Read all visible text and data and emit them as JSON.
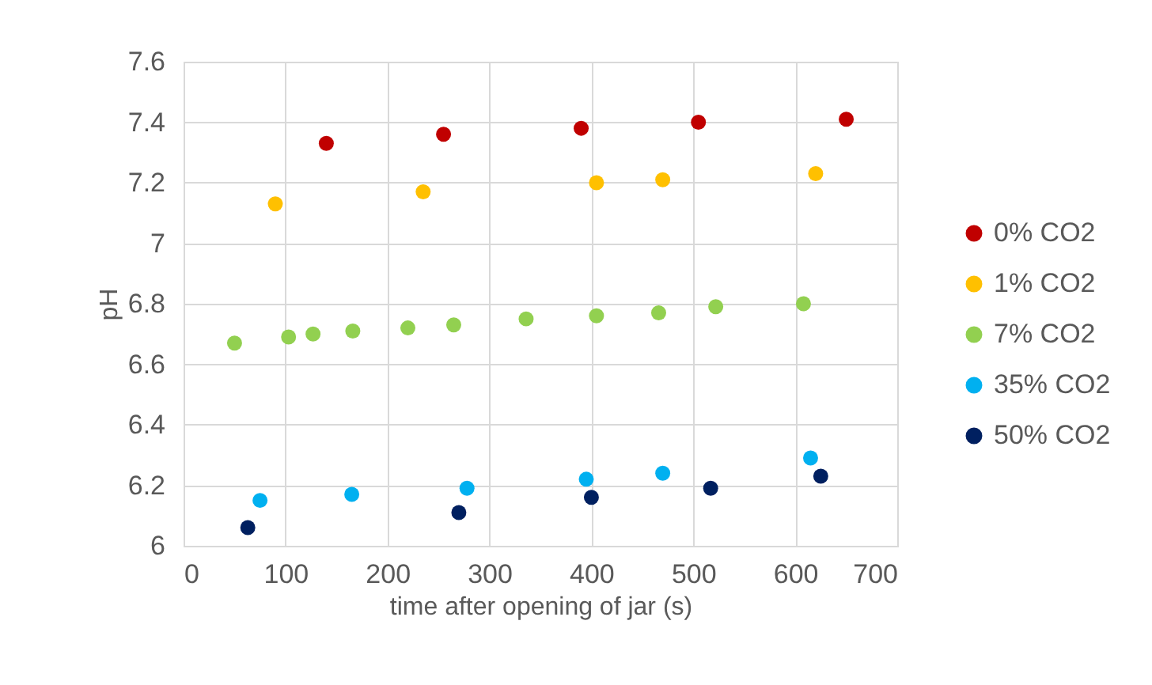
{
  "chart_data": {
    "type": "scatter",
    "xlabel": "time after opening of jar (s)",
    "ylabel": "pH",
    "xlim": [
      0,
      700
    ],
    "xticks": [
      0,
      100,
      200,
      300,
      400,
      500,
      600,
      700
    ],
    "ylim": [
      6,
      7.6
    ],
    "yticks": [
      6,
      6.2,
      6.4,
      6.6,
      6.8,
      7,
      7.2,
      7.4,
      7.6
    ],
    "grid": true,
    "legend": "right",
    "marker": "circle",
    "series": [
      {
        "name": "0% CO2",
        "color": "#c00000",
        "x": [
          140,
          255,
          390,
          505,
          650
        ],
        "values": [
          7.33,
          7.36,
          7.38,
          7.4,
          7.41
        ]
      },
      {
        "name": "1% CO2",
        "color": "#ffc000",
        "x": [
          90,
          235,
          405,
          470,
          620
        ],
        "values": [
          7.13,
          7.17,
          7.2,
          7.21,
          7.23
        ]
      },
      {
        "name": "7% CO2",
        "color": "#92d050",
        "x": [
          50,
          103,
          127,
          166,
          220,
          265,
          336,
          405,
          466,
          522,
          608
        ],
        "values": [
          6.67,
          6.69,
          6.7,
          6.71,
          6.72,
          6.73,
          6.75,
          6.76,
          6.77,
          6.79,
          6.8
        ]
      },
      {
        "name": "35% CO2",
        "color": "#00b0f0",
        "x": [
          75,
          165,
          278,
          395,
          470,
          615
        ],
        "values": [
          6.15,
          6.17,
          6.19,
          6.22,
          6.24,
          6.29
        ]
      },
      {
        "name": "50% CO2",
        "color": "#002060",
        "x": [
          63,
          270,
          400,
          517,
          625
        ],
        "values": [
          6.06,
          6.11,
          6.16,
          6.19,
          6.23
        ]
      }
    ]
  }
}
